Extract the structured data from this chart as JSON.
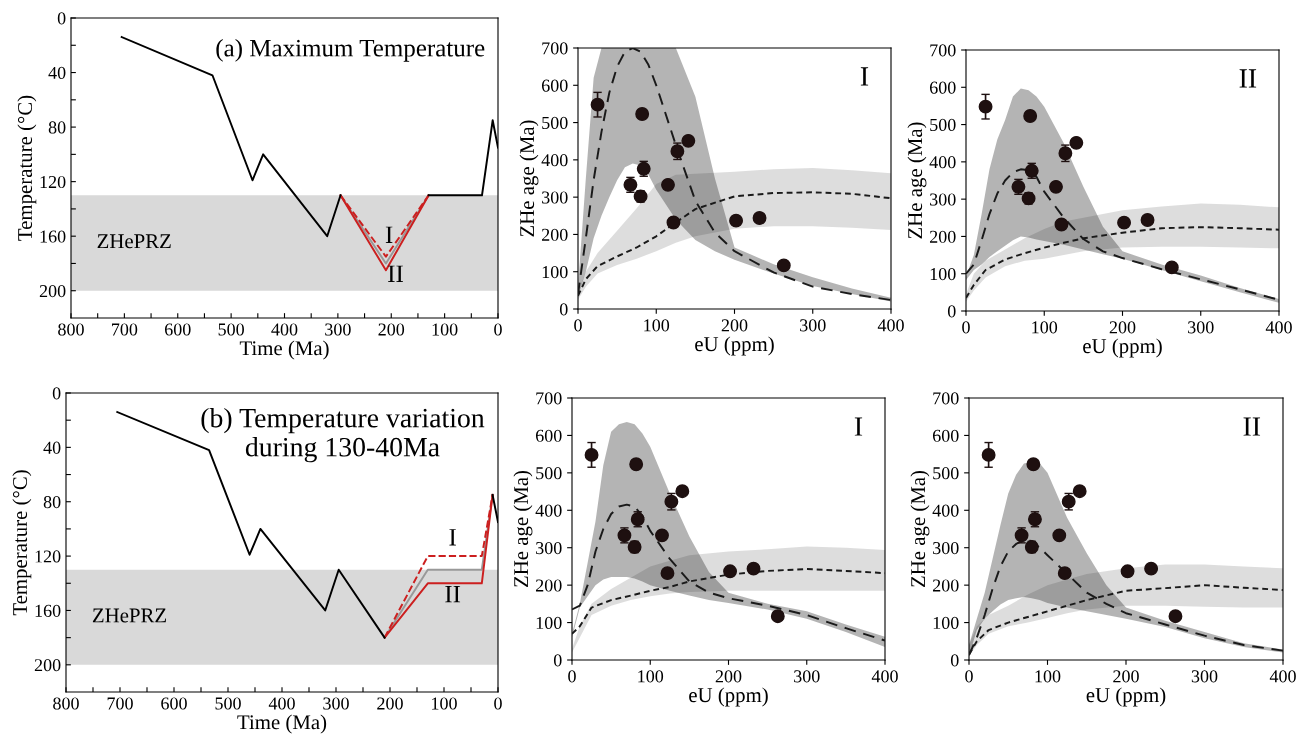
{
  "chart_data": [
    {
      "type": "line",
      "xlabel": "Time (Ma)",
      "ylabel": "Temperature (°C)",
      "xlim": [
        800,
        0
      ],
      "ylim": [
        220,
        0
      ],
      "xticks": [
        800,
        {
          "value": 750,
          "label": null
        },
        700,
        {
          "value": 650,
          "label": null
        },
        600,
        {
          "value": 550,
          "label": null
        },
        500,
        {
          "value": 450,
          "label": null
        },
        400,
        {
          "value": 350,
          "label": null
        },
        300,
        {
          "value": 250,
          "label": null
        },
        200,
        {
          "value": 150,
          "label": null
        },
        100,
        {
          "value": 50,
          "label": null
        },
        0
      ],
      "yticks": [
        0,
        {
          "value": 20,
          "label": null
        },
        40,
        {
          "value": 60,
          "label": null
        },
        80,
        {
          "value": 100,
          "label": null
        },
        120,
        {
          "value": 140,
          "label": null
        },
        160,
        {
          "value": 180,
          "label": null
        },
        200
      ],
      "bands": [
        {
          "axis": "y",
          "from": 130,
          "to": 200,
          "label": "ZHePRZ",
          "color": "#d9d9d9"
        }
      ],
      "series": [
        {
          "color": "#999999",
          "line_style": "solid",
          "x": [
            295,
            210,
            130
          ],
          "values": [
            130,
            180,
            130
          ]
        },
        {
          "color": "#cc1f1f",
          "line_style": "dashed",
          "x": [
            295,
            210,
            130
          ],
          "values": [
            130,
            175,
            130
          ]
        },
        {
          "color": "#cc1f1f",
          "line_style": "solid",
          "x": [
            295,
            210,
            130
          ],
          "values": [
            130,
            185,
            130
          ]
        },
        {
          "color": "#000000",
          "line_style": "solid",
          "x": [
            705,
            535,
            460,
            440,
            320,
            295,
            210,
            130,
            30,
            10,
            0
          ],
          "values": [
            14,
            42,
            119,
            100,
            160,
            130,
            null,
            130,
            130,
            75,
            95
          ]
        }
      ],
      "annotations": [
        "(a) Maximum Temperature",
        "I",
        "II"
      ]
    },
    {
      "type": "scatter",
      "xlabel": "eU (ppm)",
      "ylabel": "ZHe age (Ma)",
      "xlim": [
        0,
        400
      ],
      "ylim": [
        0,
        700
      ],
      "xticks": [
        0,
        100,
        200,
        300,
        400
      ],
      "yticks": [
        0,
        100,
        200,
        300,
        400,
        500,
        600,
        700
      ],
      "series": [
        {
          "type": "line",
          "color": "#1a1a1a",
          "line_style": "dashed",
          "x": [
            0,
            10,
            25,
            50,
            75,
            100,
            125,
            150,
            200,
            250,
            300,
            350,
            400
          ],
          "values": [
            35,
            80,
            115,
            141,
            165,
            195,
            232,
            268,
            302,
            311,
            313,
            309,
            297
          ],
          "lower": [
            25,
            60,
            95,
            118,
            135,
            155,
            178,
            195,
            215,
            222,
            222,
            218,
            212
          ],
          "upper": [
            45,
            100,
            150,
            210,
            270,
            335,
            360,
            363,
            368,
            375,
            378,
            372,
            364
          ]
        },
        {
          "type": "line",
          "color": "#1a1a1a",
          "line_style": "dashed",
          "x": [
            0,
            10,
            20,
            30,
            40,
            50,
            60,
            70,
            80,
            90,
            100,
            125,
            150,
            175,
            200,
            250,
            300,
            350,
            400
          ],
          "values": [
            40,
            190,
            346,
            475,
            580,
            650,
            690,
            700,
            690,
            655,
            600,
            440,
            290,
            205,
            155,
            98,
            60,
            40,
            24
          ],
          "lower": [
            33,
            100,
            190,
            250,
            300,
            345,
            380,
            390,
            385,
            360,
            320,
            240,
            185,
            155,
            132,
            95,
            62,
            40,
            20
          ],
          "upper": [
            60,
            350,
            620,
            700,
            700,
            700,
            700,
            700,
            700,
            700,
            700,
            700,
            569,
            350,
            165,
            120,
            85,
            55,
            30
          ]
        },
        {
          "type": "scatter",
          "color": "#1e1010",
          "x": [
            25,
            67,
            80,
            82,
            84,
            115,
            122,
            127,
            141,
            202,
            232,
            263
          ],
          "values": [
            548,
            333,
            302,
            523,
            376,
            333,
            232,
            423,
            451,
            237,
            244,
            117
          ],
          "errors": [
            33,
            20,
            15,
            12,
            20,
            8,
            12,
            22,
            10,
            12,
            5,
            5
          ]
        }
      ],
      "annotations": [
        "I"
      ]
    },
    {
      "type": "scatter",
      "xlabel": "eU (ppm)",
      "ylabel": "ZHe age (Ma)",
      "xlim": [
        0,
        400
      ],
      "ylim": [
        0,
        700
      ],
      "xticks": [
        0,
        100,
        200,
        300,
        400
      ],
      "yticks": [
        0,
        100,
        200,
        300,
        400,
        500,
        600,
        700
      ],
      "series": [
        {
          "type": "line",
          "color": "#1a1a1a",
          "line_style": "dashed",
          "x": [
            0,
            10,
            25,
            50,
            75,
            100,
            125,
            150,
            200,
            250,
            300,
            350,
            400
          ],
          "values": [
            35,
            70,
            110,
            138,
            155,
            170,
            183,
            195,
            210,
            222,
            225,
            222,
            218
          ],
          "lower": [
            25,
            55,
            90,
            120,
            135,
            140,
            150,
            160,
            170,
            172,
            172,
            170,
            168
          ],
          "upper": [
            45,
            100,
            135,
            165,
            195,
            220,
            240,
            250,
            270,
            280,
            288,
            285,
            278
          ]
        },
        {
          "type": "line",
          "color": "#1a1a1a",
          "line_style": "dashed",
          "x": [
            0,
            10,
            20,
            30,
            40,
            50,
            60,
            70,
            80,
            90,
            100,
            125,
            150,
            175,
            200,
            250,
            300,
            350,
            400
          ],
          "values": [
            100,
            125,
            190,
            260,
            315,
            350,
            372,
            380,
            378,
            360,
            320,
            250,
            193,
            160,
            142,
            112,
            85,
            58,
            30
          ],
          "lower": [
            83,
            110,
            125,
            145,
            160,
            175,
            190,
            200,
            197,
            192,
            188,
            178,
            165,
            152,
            140,
            110,
            80,
            50,
            22
          ],
          "upper": [
            92,
            150,
            260,
            380,
            460,
            512,
            575,
            597,
            592,
            575,
            548,
            450,
            333,
            226,
            160,
            125,
            95,
            62,
            32
          ]
        },
        {
          "type": "scatter",
          "color": "#1e1010",
          "x": [
            25,
            67,
            80,
            82,
            84,
            115,
            122,
            127,
            141,
            202,
            232,
            263
          ],
          "values": [
            548,
            333,
            302,
            523,
            376,
            333,
            232,
            423,
            451,
            237,
            244,
            117
          ],
          "errors": [
            33,
            20,
            15,
            12,
            20,
            8,
            12,
            22,
            10,
            12,
            5,
            5
          ]
        }
      ],
      "annotations": [
        "II"
      ]
    },
    {
      "type": "line",
      "xlabel": "Time (Ma)",
      "ylabel": "Temperature (°C)",
      "xlim": [
        800,
        0
      ],
      "ylim": [
        220,
        0
      ],
      "xticks": [
        800,
        {
          "value": 750,
          "label": null
        },
        700,
        {
          "value": 650,
          "label": null
        },
        600,
        {
          "value": 550,
          "label": null
        },
        500,
        {
          "value": 450,
          "label": null
        },
        400,
        {
          "value": 350,
          "label": null
        },
        300,
        {
          "value": 250,
          "label": null
        },
        200,
        {
          "value": 150,
          "label": null
        },
        100,
        {
          "value": 50,
          "label": null
        },
        0
      ],
      "yticks": [
        0,
        {
          "value": 20,
          "label": null
        },
        40,
        {
          "value": 60,
          "label": null
        },
        80,
        {
          "value": 100,
          "label": null
        },
        120,
        {
          "value": 140,
          "label": null
        },
        160,
        {
          "value": 180,
          "label": null
        },
        200
      ],
      "bands": [
        {
          "axis": "y",
          "from": 130,
          "to": 200,
          "label": "ZHePRZ",
          "color": "#d9d9d9"
        }
      ],
      "series": [
        {
          "color": "#999999",
          "line_style": "solid",
          "x": [
            210,
            130,
            30,
            10
          ],
          "values": [
            180,
            130,
            130,
            75
          ]
        },
        {
          "color": "#cc1f1f",
          "line_style": "dashed",
          "x": [
            210,
            130,
            30,
            10
          ],
          "values": [
            180,
            120,
            120,
            75
          ]
        },
        {
          "color": "#cc1f1f",
          "line_style": "solid",
          "x": [
            210,
            130,
            30,
            10
          ],
          "values": [
            180,
            140,
            140,
            75
          ]
        },
        {
          "color": "#000000",
          "line_style": "solid",
          "x": [
            705,
            535,
            460,
            440,
            320,
            295,
            210,
            100,
            10,
            0
          ],
          "values": [
            14,
            42,
            119,
            100,
            160,
            130,
            180,
            null,
            75,
            95
          ]
        }
      ],
      "annotations": [
        "(b) Temperature variation\nduring 130-40Ma",
        "I",
        "II"
      ]
    },
    {
      "type": "scatter",
      "xlabel": "eU (ppm)",
      "ylabel": "ZHe age (Ma)",
      "xlim": [
        0,
        400
      ],
      "ylim": [
        0,
        700
      ],
      "xticks": [
        0,
        100,
        200,
        300,
        400
      ],
      "yticks": [
        0,
        100,
        200,
        300,
        400,
        500,
        600,
        700
      ],
      "series": [
        {
          "type": "line",
          "color": "#1a1a1a",
          "line_style": "dashed",
          "x": [
            0,
            10,
            25,
            50,
            75,
            100,
            125,
            150,
            200,
            250,
            300,
            350,
            400
          ],
          "values": [
            70,
            90,
            140,
            160,
            172,
            185,
            195,
            210,
            228,
            238,
            243,
            238,
            232
          ],
          "lower": [
            20,
            60,
            120,
            145,
            160,
            170,
            178,
            182,
            185,
            185,
            185,
            185,
            185
          ],
          "upper": [
            30,
            90,
            150,
            190,
            220,
            250,
            265,
            280,
            290,
            296,
            303,
            300,
            294
          ]
        },
        {
          "type": "line",
          "color": "#1a1a1a",
          "line_style": "dashed",
          "x": [
            0,
            10,
            20,
            30,
            40,
            50,
            60,
            70,
            80,
            90,
            100,
            125,
            150,
            175,
            200,
            250,
            300,
            350,
            400
          ],
          "values": [
            135,
            145,
            200,
            290,
            350,
            390,
            410,
            415,
            410,
            385,
            345,
            270,
            210,
            180,
            165,
            145,
            120,
            85,
            52
          ],
          "lower": [
            60,
            140,
            170,
            200,
            215,
            222,
            222,
            222,
            218,
            210,
            200,
            185,
            172,
            160,
            152,
            135,
            110,
            75,
            35
          ],
          "upper": [
            70,
            150,
            260,
            370,
            520,
            610,
            630,
            636,
            630,
            605,
            570,
            445,
            330,
            235,
            180,
            150,
            130,
            95,
            62
          ]
        },
        {
          "type": "scatter",
          "color": "#1e1010",
          "x": [
            25,
            67,
            80,
            82,
            84,
            115,
            122,
            127,
            141,
            202,
            232,
            263
          ],
          "values": [
            548,
            333,
            302,
            523,
            376,
            333,
            232,
            423,
            451,
            237,
            244,
            117
          ],
          "errors": [
            33,
            20,
            15,
            12,
            20,
            8,
            12,
            22,
            10,
            12,
            5,
            5
          ]
        }
      ],
      "annotations": [
        "I"
      ]
    },
    {
      "type": "scatter",
      "xlabel": "eU (ppm)",
      "ylabel": "ZHe age (Ma)",
      "xlim": [
        0,
        400
      ],
      "ylim": [
        0,
        700
      ],
      "xticks": [
        0,
        100,
        200,
        300,
        400
      ],
      "yticks": [
        0,
        100,
        200,
        300,
        400,
        500,
        600,
        700
      ],
      "series": [
        {
          "type": "line",
          "color": "#1a1a1a",
          "line_style": "dashed",
          "x": [
            0,
            10,
            25,
            50,
            75,
            100,
            125,
            150,
            200,
            250,
            300,
            350,
            400
          ],
          "values": [
            15,
            50,
            80,
            100,
            115,
            130,
            145,
            160,
            185,
            192,
            200,
            193,
            187
          ],
          "lower": [
            10,
            40,
            70,
            90,
            100,
            112,
            125,
            135,
            145,
            145,
            142,
            140,
            140
          ],
          "upper": [
            40,
            90,
            120,
            145,
            175,
            200,
            215,
            230,
            245,
            255,
            255,
            250,
            245
          ]
        },
        {
          "type": "line",
          "color": "#1a1a1a",
          "line_style": "dashed",
          "x": [
            0,
            10,
            20,
            30,
            40,
            50,
            60,
            70,
            80,
            90,
            100,
            125,
            150,
            175,
            200,
            250,
            300,
            350,
            400
          ],
          "values": [
            13,
            60,
            120,
            190,
            250,
            290,
            310,
            320,
            318,
            300,
            280,
            230,
            180,
            150,
            125,
            95,
            65,
            40,
            25
          ],
          "lower": [
            10,
            80,
            110,
            130,
            148,
            160,
            165,
            168,
            165,
            160,
            152,
            140,
            130,
            120,
            110,
            88,
            58,
            35,
            20
          ],
          "upper": [
            40,
            110,
            180,
            270,
            360,
            445,
            495,
            525,
            530,
            526,
            500,
            380,
            285,
            200,
            140,
            105,
            75,
            45,
            28
          ]
        },
        {
          "type": "scatter",
          "color": "#1e1010",
          "x": [
            25,
            67,
            80,
            82,
            84,
            115,
            122,
            127,
            141,
            202,
            232,
            263
          ],
          "values": [
            548,
            333,
            302,
            523,
            376,
            333,
            232,
            423,
            451,
            237,
            244,
            117
          ],
          "errors": [
            33,
            20,
            15,
            12,
            20,
            8,
            12,
            22,
            10,
            12,
            5,
            5
          ]
        }
      ],
      "annotations": [
        "II"
      ]
    }
  ]
}
